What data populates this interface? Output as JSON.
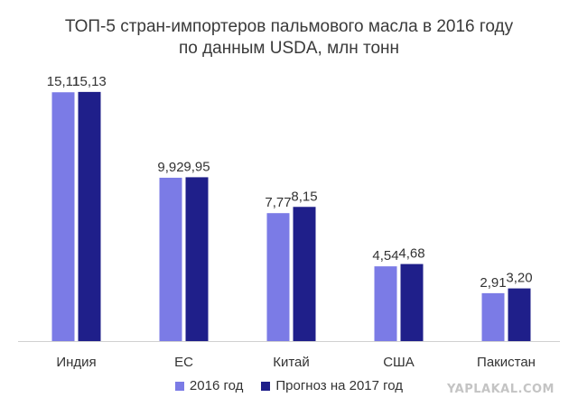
{
  "chart_data": {
    "type": "bar",
    "title": "ТОП-5 стран-импортеров пальмового масла в 2016 году",
    "subtitle": "по данным USDA, млн тонн",
    "categories": [
      "Индия",
      "ЕС",
      "Китай",
      "США",
      "Пакистан"
    ],
    "series": [
      {
        "name": "2016 год",
        "values": [
          15.11,
          9.92,
          7.77,
          4.54,
          2.91
        ],
        "labels": [
          "15,11",
          "9,92",
          "7,77",
          "4,54",
          "2,91"
        ],
        "color": "#7b7be6"
      },
      {
        "name": "Прогноз на 2017 год",
        "values": [
          15.13,
          9.95,
          8.15,
          4.68,
          3.2
        ],
        "labels": [
          "15,13",
          "9,95",
          "8,15",
          "4,68",
          "3,20"
        ],
        "color": "#1f1f8a"
      }
    ],
    "ylim": [
      0,
      16
    ],
    "grid": false,
    "legend": "bottom"
  },
  "watermark": "YAPLAKAL.COM"
}
